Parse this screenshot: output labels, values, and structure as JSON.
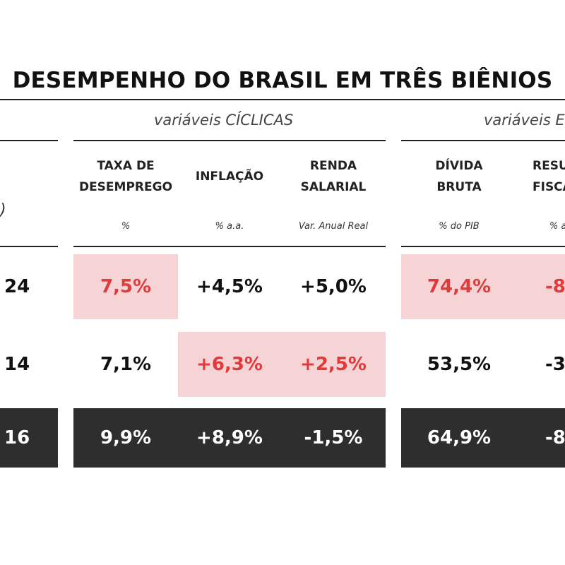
{
  "title": "DESEMPENHO DO BRASIL EM TRÊS BIÊNIOS",
  "groups": {
    "ciclicas": "variáveis CÍCLICAS",
    "second": "variáveis E"
  },
  "left_paren": ")",
  "columns": {
    "desemprego": {
      "line1": "TAXA DE",
      "line2": "DESEMPREGO",
      "unit": "%"
    },
    "inflacao": {
      "line1": "INFLAÇÃO",
      "unit": "% a.a."
    },
    "renda": {
      "line1": "RENDA",
      "line2": "SALARIAL",
      "unit": "Var. Anual Real"
    },
    "divida": {
      "line1": "DÍVIDA",
      "line2": "BRUTA",
      "unit": "% do PIB"
    },
    "resultado": {
      "line1": "RESU",
      "line2": "FISCA",
      "unit": "% a"
    }
  },
  "rows": [
    {
      "label": "24",
      "desemprego": "7,5%",
      "inflacao": "+4,5%",
      "renda": "+5,0%",
      "divida": "74,4%",
      "resultado": "-8"
    },
    {
      "label": "14",
      "desemprego": "7,1%",
      "inflacao": "+6,3%",
      "renda": "+2,5%",
      "divida": "53,5%",
      "resultado": "-3"
    },
    {
      "label": "16",
      "desemprego": "9,9%",
      "inflacao": "+8,9%",
      "renda": "-1,5%",
      "divida": "64,9%",
      "resultado": "-8"
    }
  ],
  "colors": {
    "highlight_bg": "#f6d3d4",
    "highlight_text": "#e03b3b",
    "dark_row_bg": "#2e2e2e"
  }
}
